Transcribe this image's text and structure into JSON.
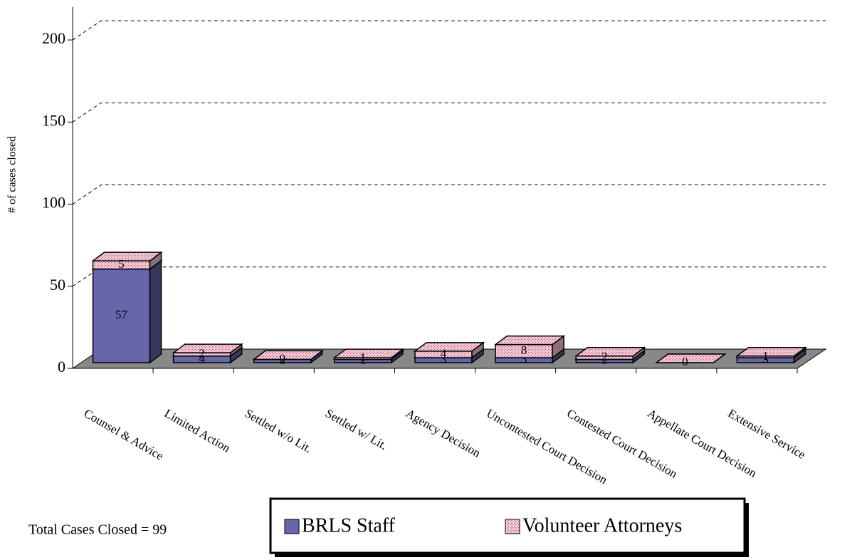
{
  "chart_data": {
    "type": "bar3d_stacked",
    "ylabel": "# of cases closed",
    "annotation": "Total Cases Closed = 99",
    "categories": [
      "Counsel & Advice",
      "Limited Action",
      "Settled w/o Lit.",
      "Settled w/ Lit.",
      "Agency Decision",
      "Uncontested Court Decision",
      "Contested Court Decision",
      "Appellate Court Decision",
      "Extensive Service"
    ],
    "series": [
      {
        "name": "BRLS Staff",
        "color": "#6666aa",
        "values": [
          57,
          4,
          2,
          2,
          3,
          3,
          2,
          0,
          3
        ]
      },
      {
        "name": "Volunteer Attorneys",
        "color": "#ffccdd",
        "values": [
          5,
          2,
          0,
          1,
          4,
          8,
          2,
          0,
          1
        ]
      }
    ],
    "ylim": [
      0,
      220
    ],
    "yticks": [
      0,
      50,
      100,
      150,
      200
    ],
    "grid": true
  }
}
